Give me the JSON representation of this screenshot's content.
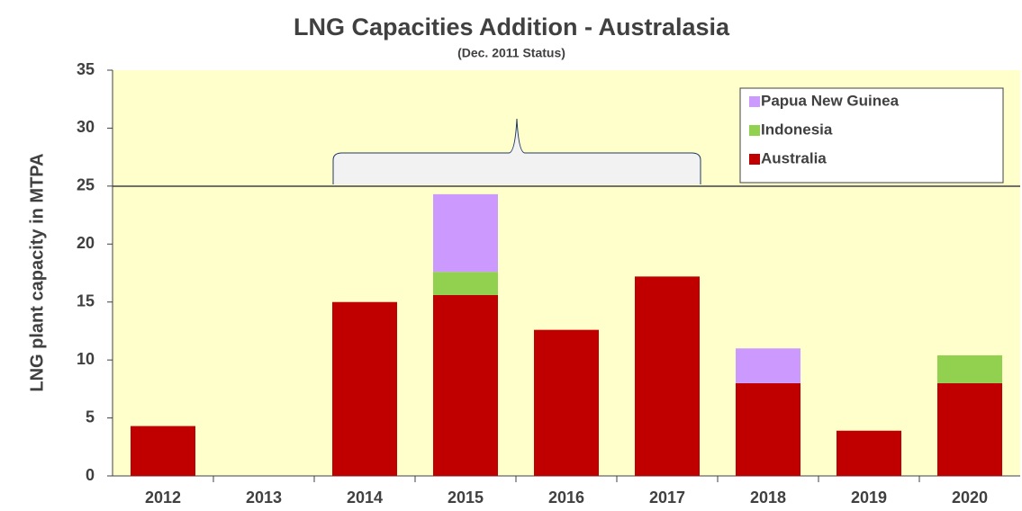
{
  "chart_data": {
    "type": "stacked_bar",
    "title": "LNG  Capacities Addition - Australasia",
    "subtitle": "(Dec. 2011 Status)",
    "y_label": "LNG plant capacity in MTPA",
    "categories": [
      "2012",
      "2013",
      "2014",
      "2015",
      "2016",
      "2017",
      "2018",
      "2019",
      "2020"
    ],
    "series": [
      {
        "name": "Australia",
        "color": "#c00000",
        "values": [
          4.3,
          0,
          15.0,
          15.6,
          12.6,
          17.2,
          8.0,
          3.9,
          8.0
        ]
      },
      {
        "name": "Indonesia",
        "color": "#92d050",
        "values": [
          0,
          0,
          0,
          2.0,
          0,
          0,
          0,
          0,
          2.4
        ]
      },
      {
        "name": "Papua New Guinea",
        "color": "#cc99ff",
        "values": [
          0,
          0,
          0,
          6.7,
          0,
          0,
          3.0,
          0,
          0
        ]
      }
    ],
    "ylim": [
      0,
      35
    ],
    "yticks": [
      0,
      5,
      10,
      15,
      20,
      25,
      30,
      35
    ],
    "legend": "upper right"
  }
}
